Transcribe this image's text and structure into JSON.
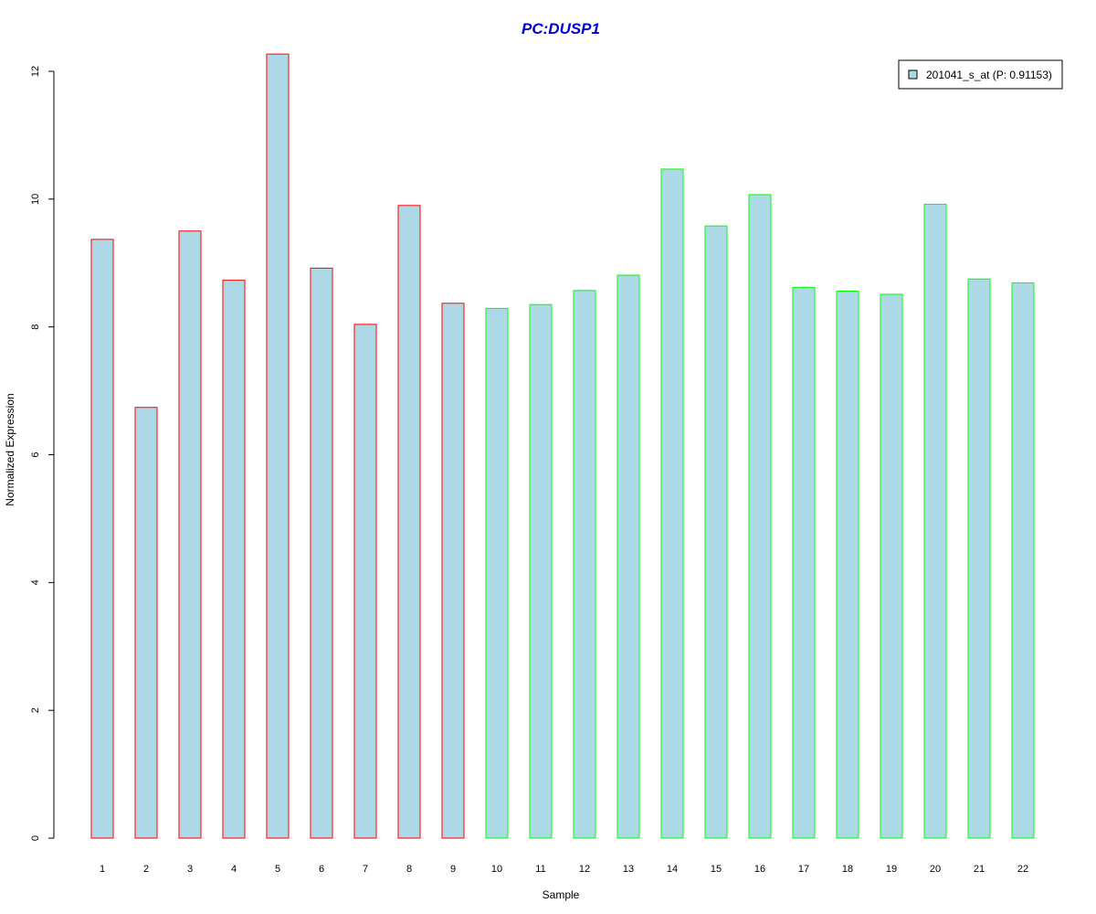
{
  "chart_data": {
    "type": "bar",
    "title": "PC:DUSP1",
    "xlabel": "Sample",
    "ylabel": "Normalized Expression",
    "categories": [
      "1",
      "2",
      "3",
      "4",
      "5",
      "6",
      "7",
      "8",
      "9",
      "10",
      "11",
      "12",
      "13",
      "14",
      "15",
      "16",
      "17",
      "18",
      "19",
      "20",
      "21",
      "22"
    ],
    "series": [
      {
        "name": "201041_s_at (P: 0.91153)",
        "values": [
          9.37,
          6.74,
          9.5,
          8.73,
          12.27,
          8.92,
          8.04,
          9.9,
          8.37,
          8.29,
          8.35,
          8.57,
          8.81,
          10.47,
          9.58,
          10.07,
          8.62,
          8.56,
          8.51,
          9.92,
          8.75,
          8.69
        ]
      }
    ],
    "group_border_colors": [
      "#ff0000",
      "#ff0000",
      "#ff0000",
      "#ff0000",
      "#ff0000",
      "#ff0000",
      "#ff0000",
      "#ff0000",
      "#ff0000",
      "#00ff00",
      "#00ff00",
      "#00ff00",
      "#00ff00",
      "#00ff00",
      "#00ff00",
      "#00ff00",
      "#00ff00",
      "#00ff00",
      "#00ff00",
      "#00ff00",
      "#00ff00",
      "#00ff00"
    ],
    "bar_fill": "#add8e6",
    "title_color": "#0000cc",
    "ylim": [
      0,
      12.4
    ],
    "yticks": [
      0,
      2,
      4,
      6,
      8,
      10,
      12
    ],
    "grid": false,
    "legend_position": "top-right"
  }
}
